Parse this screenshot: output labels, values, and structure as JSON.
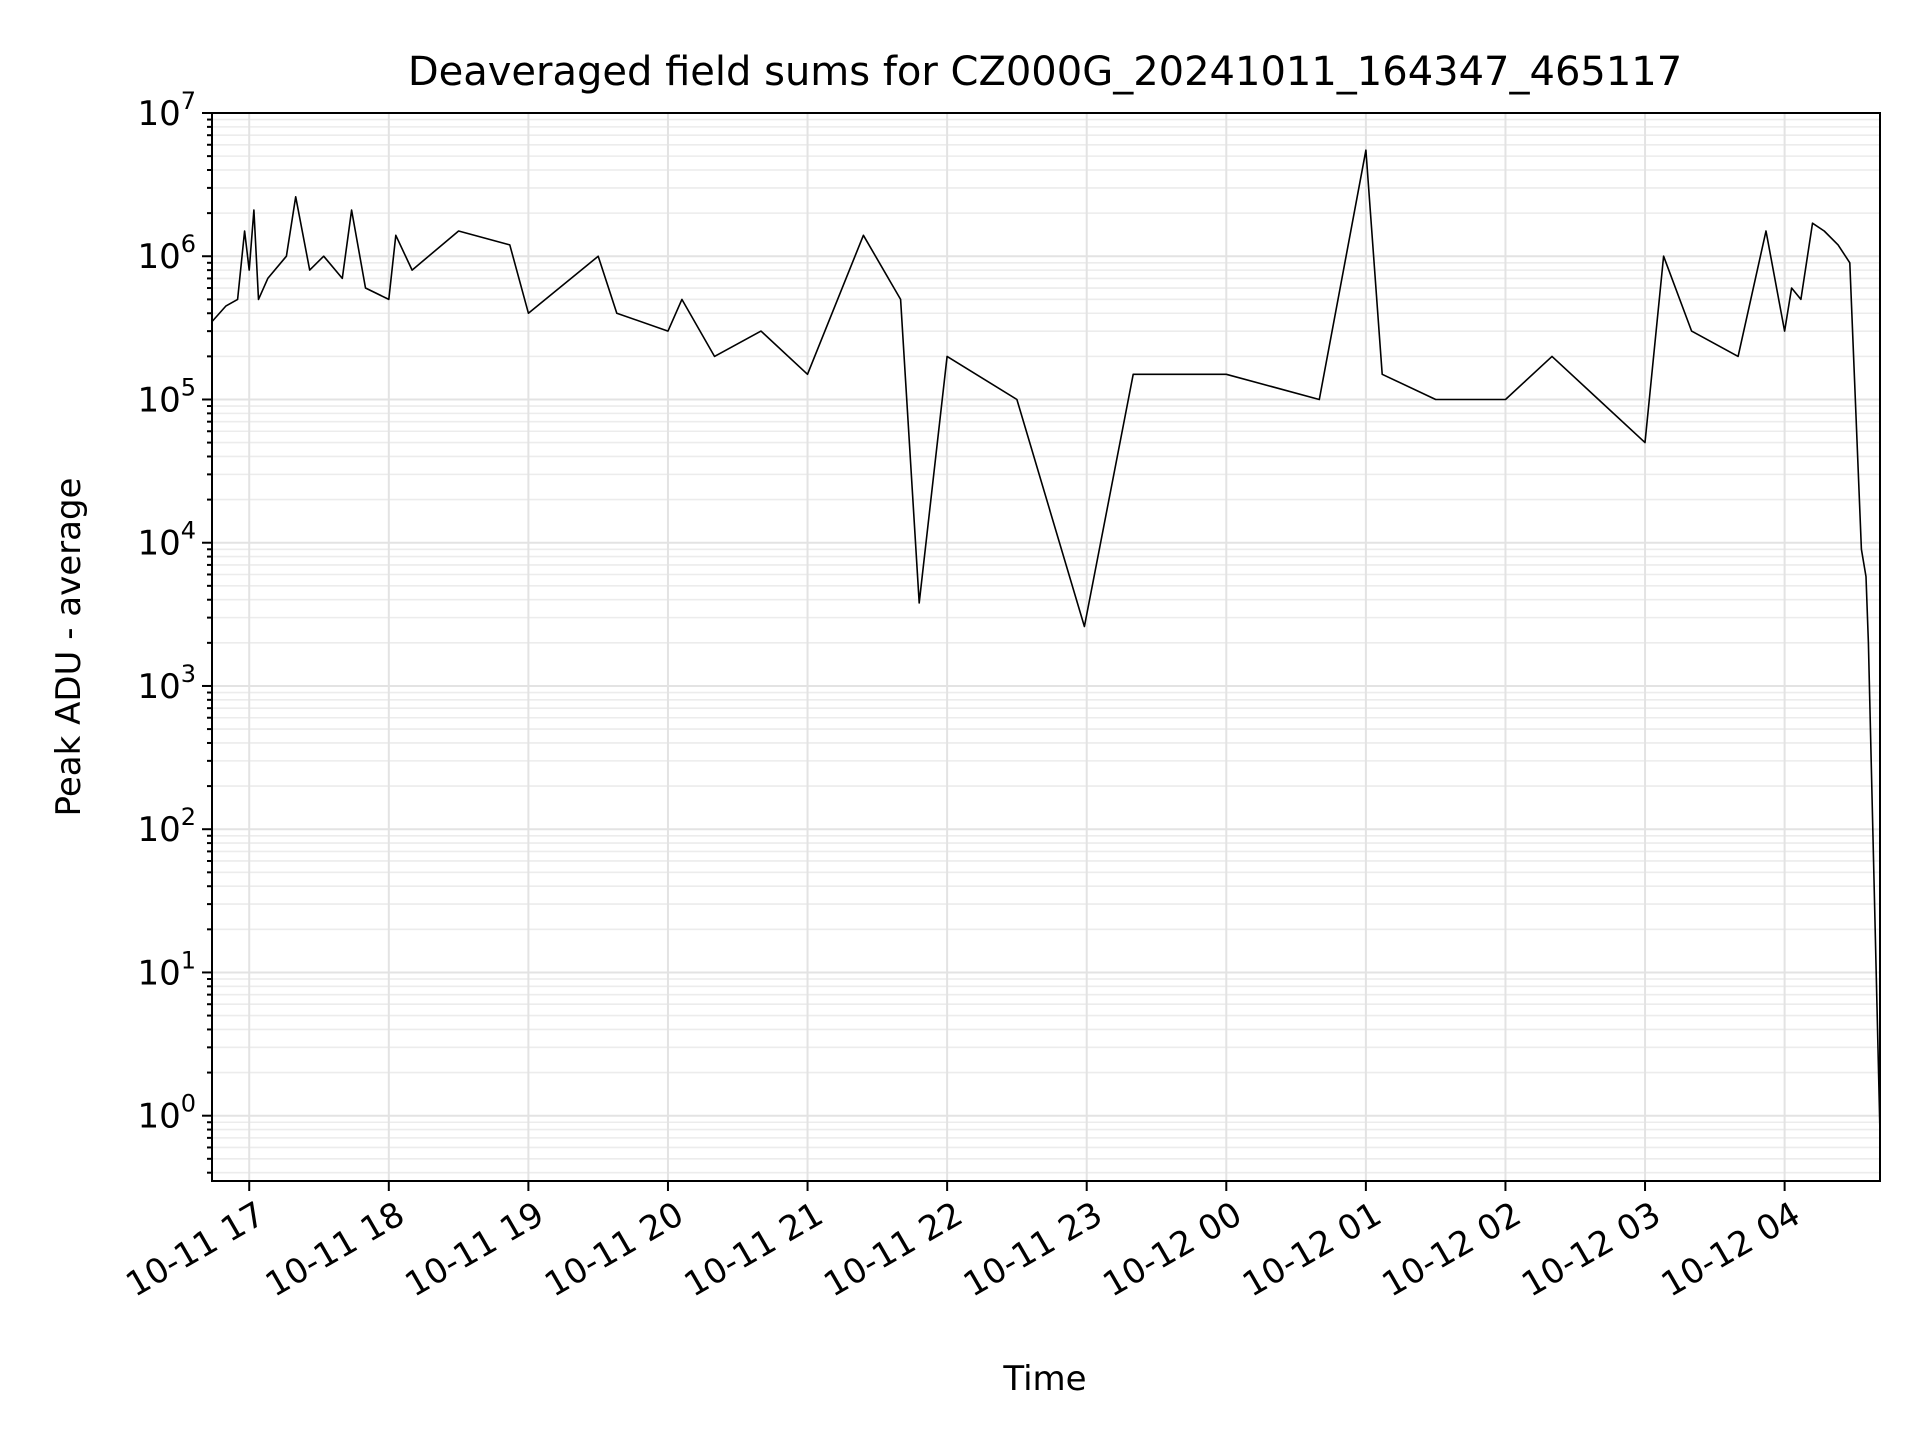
{
  "chart_data": {
    "type": "line",
    "title": "Deaveraged field sums for CZ000G_20241011_164347_465117",
    "xlabel": "Time",
    "ylabel": "Peak ADU - average",
    "yscale": "log",
    "ylim": [
      0.35,
      10000000
    ],
    "xlim": [
      "2024-10-11 16:44",
      "2024-10-12 04:41"
    ],
    "grid": "on",
    "x_ticks": [
      {
        "t": "2024-10-11 17:00",
        "label": "10-11 17"
      },
      {
        "t": "2024-10-11 18:00",
        "label": "10-11 18"
      },
      {
        "t": "2024-10-11 19:00",
        "label": "10-11 19"
      },
      {
        "t": "2024-10-11 20:00",
        "label": "10-11 20"
      },
      {
        "t": "2024-10-11 21:00",
        "label": "10-11 21"
      },
      {
        "t": "2024-10-11 22:00",
        "label": "10-11 22"
      },
      {
        "t": "2024-10-11 23:00",
        "label": "10-11 23"
      },
      {
        "t": "2024-10-12 00:00",
        "label": "10-12 00"
      },
      {
        "t": "2024-10-12 01:00",
        "label": "10-12 01"
      },
      {
        "t": "2024-10-12 02:00",
        "label": "10-12 02"
      },
      {
        "t": "2024-10-12 03:00",
        "label": "10-12 03"
      },
      {
        "t": "2024-10-12 04:00",
        "label": "10-12 04"
      }
    ],
    "y_ticks": [
      {
        "value": 1,
        "base": "10",
        "exp": "0"
      },
      {
        "value": 10,
        "base": "10",
        "exp": "1"
      },
      {
        "value": 100,
        "base": "10",
        "exp": "2"
      },
      {
        "value": 1000,
        "base": "10",
        "exp": "3"
      },
      {
        "value": 10000,
        "base": "10",
        "exp": "4"
      },
      {
        "value": 100000,
        "base": "10",
        "exp": "5"
      },
      {
        "value": 1000000,
        "base": "10",
        "exp": "6"
      },
      {
        "value": 10000000,
        "base": "10",
        "exp": "7"
      }
    ],
    "line_color": "#000000",
    "series": [
      {
        "x": [
          "2024-10-11 16:44",
          "2024-10-11 16:50",
          "2024-10-11 16:55",
          "2024-10-11 16:58",
          "2024-10-11 17:00",
          "2024-10-11 17:02",
          "2024-10-11 17:04",
          "2024-10-11 17:08",
          "2024-10-11 17:16",
          "2024-10-11 17:20",
          "2024-10-11 17:26",
          "2024-10-11 17:32",
          "2024-10-11 17:40",
          "2024-10-11 17:44",
          "2024-10-11 17:50",
          "2024-10-11 18:00",
          "2024-10-11 18:03",
          "2024-10-11 18:10",
          "2024-10-11 18:30",
          "2024-10-11 18:52",
          "2024-10-11 19:00",
          "2024-10-11 19:30",
          "2024-10-11 19:38",
          "2024-10-11 20:00",
          "2024-10-11 20:06",
          "2024-10-11 20:20",
          "2024-10-11 20:40",
          "2024-10-11 21:00",
          "2024-10-11 21:24",
          "2024-10-11 21:40",
          "2024-10-11 21:48",
          "2024-10-11 22:00",
          "2024-10-11 22:30",
          "2024-10-11 22:59",
          "2024-10-11 23:20",
          "2024-10-12 00:00",
          "2024-10-12 00:40",
          "2024-10-12 01:00",
          "2024-10-12 01:07",
          "2024-10-12 01:30",
          "2024-10-12 02:00",
          "2024-10-12 02:20",
          "2024-10-12 02:40",
          "2024-10-12 03:00",
          "2024-10-12 03:08",
          "2024-10-12 03:20",
          "2024-10-12 03:40",
          "2024-10-12 03:52",
          "2024-10-12 04:00",
          "2024-10-12 04:03",
          "2024-10-12 04:07",
          "2024-10-12 04:12",
          "2024-10-12 04:17",
          "2024-10-12 04:23",
          "2024-10-12 04:28",
          "2024-10-12 04:33",
          "2024-10-12 04:35",
          "2024-10-12 04:36",
          "2024-10-12 04:41"
        ],
        "y": [
          350000,
          450000,
          500000,
          1500000,
          800000,
          2100000,
          500000,
          700000,
          1000000,
          2600000,
          800000,
          1000000,
          700000,
          2100000,
          600000,
          500000,
          1400000,
          800000,
          1500000,
          1200000,
          400000,
          1000000,
          400000,
          300000,
          500000,
          200000,
          300000,
          150000,
          1400000,
          500000,
          3800,
          200000,
          100000,
          2600,
          150000,
          150000,
          100000,
          5500000,
          150000,
          100000,
          100000,
          200000,
          100000,
          50000,
          1000000,
          300000,
          200000,
          1500000,
          300000,
          600000,
          500000,
          1700000,
          1500000,
          1200000,
          900000,
          9000,
          5800,
          2000,
          0.75
        ]
      }
    ]
  }
}
